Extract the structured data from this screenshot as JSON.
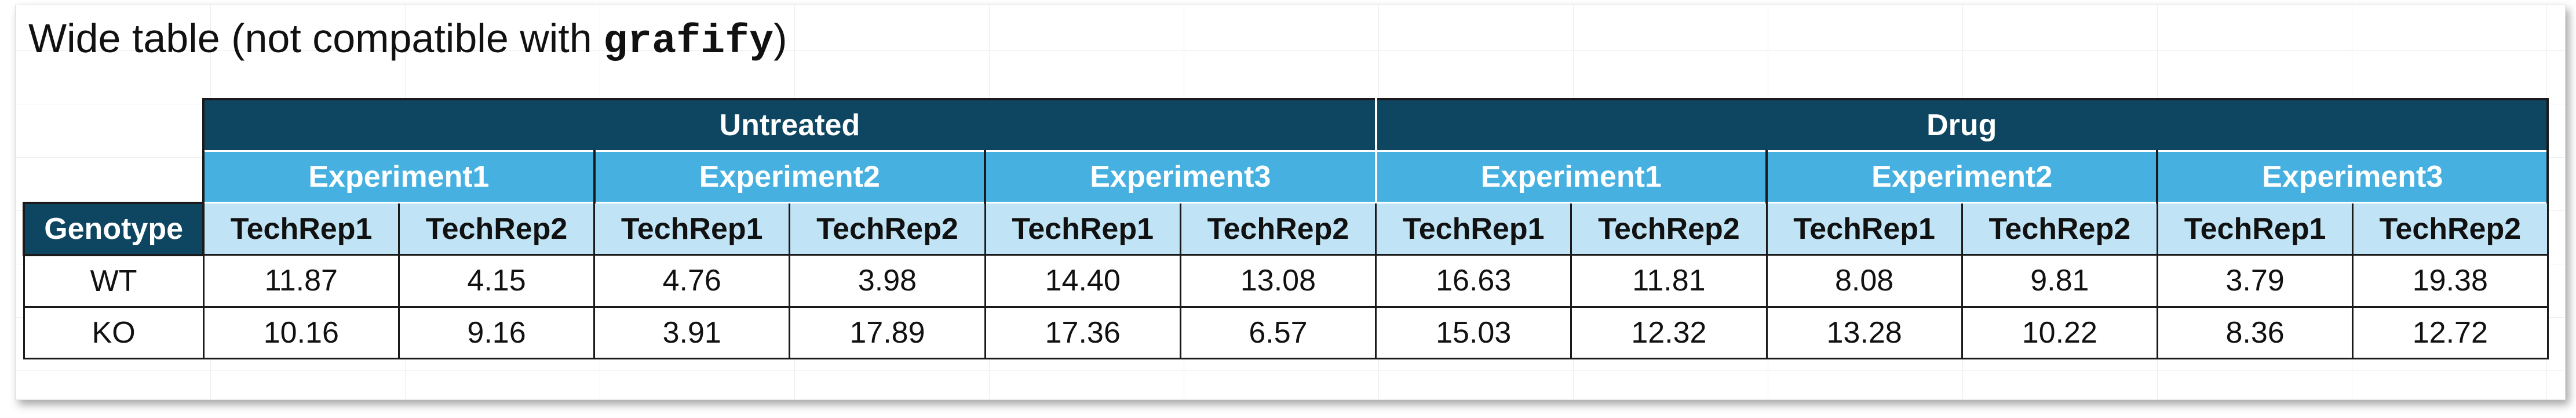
{
  "title": {
    "prefix": "Wide table (not compatible with ",
    "code": "grafify",
    "suffix": ")"
  },
  "table": {
    "treatments": [
      "Untreated",
      "Drug"
    ],
    "experiments": [
      "Experiment1",
      "Experiment2",
      "Experiment3",
      "Experiment1",
      "Experiment2",
      "Experiment3"
    ],
    "row_header_label": "Genotype",
    "techreps": [
      "TechRep1",
      "TechRep2",
      "TechRep1",
      "TechRep2",
      "TechRep1",
      "TechRep2",
      "TechRep1",
      "TechRep2",
      "TechRep1",
      "TechRep2",
      "TechRep1",
      "TechRep2"
    ],
    "rows": [
      {
        "genotype": "WT",
        "values": [
          "11.87",
          "4.15",
          "4.76",
          "3.98",
          "14.40",
          "13.08",
          "16.63",
          "11.81",
          "8.08",
          "9.81",
          "3.79",
          "19.38"
        ]
      },
      {
        "genotype": "KO",
        "values": [
          "10.16",
          "9.16",
          "3.91",
          "17.89",
          "17.36",
          "6.57",
          "15.03",
          "12.32",
          "13.28",
          "10.22",
          "8.36",
          "12.72"
        ]
      }
    ]
  },
  "colors": {
    "header_dark": "#0e4661",
    "header_mid": "#46b1e1",
    "header_light": "#c0e4f5"
  }
}
